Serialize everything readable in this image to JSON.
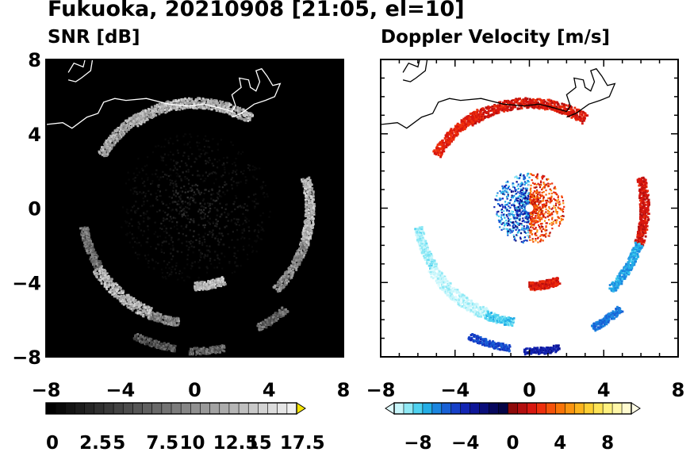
{
  "title": "Fukuoka, 20210908 [21:05, el=10]",
  "chart_data": [
    {
      "type": "heatmap",
      "title": "SNR [dB]",
      "xlim": [
        -8,
        8
      ],
      "ylim": [
        -8,
        8
      ],
      "x_ticks": [
        "−8",
        "−4",
        "0",
        "4",
        "8"
      ],
      "y_ticks": [
        "8",
        "4",
        "0",
        "−4",
        "−8"
      ],
      "background": "#000000",
      "colorbar": {
        "labels": [
          "0",
          "2.5",
          "5",
          "7.5",
          "10",
          "12.5",
          "15",
          "17.5"
        ],
        "range": [
          0,
          18.75
        ],
        "extend": "max",
        "colors": [
          "#000000",
          "#090909",
          "#131313",
          "#1c1c1c",
          "#262626",
          "#303030",
          "#393939",
          "#434343",
          "#4c4c4c",
          "#565656",
          "#606060",
          "#696969",
          "#737373",
          "#7c7c7c",
          "#868686",
          "#909090",
          "#999999",
          "#a3a3a3",
          "#acacac",
          "#b6b6b6",
          "#c0c0c0",
          "#c9c9c9",
          "#d3d3d3",
          "#dcdcdc",
          "#e6e6e6",
          "#f0f0f0"
        ],
        "extend_color": "#f5e400"
      },
      "features": [
        {
          "name": "echo ring",
          "center": [
            0,
            0
          ],
          "radius": 6.0,
          "value_range": [
            8,
            19
          ]
        },
        {
          "name": "outer arcs",
          "center": [
            0,
            0
          ],
          "radius": 7.4,
          "value_range": [
            6,
            14
          ]
        },
        {
          "name": "near-radar clutter",
          "center": [
            0,
            0
          ],
          "radius": 3.8,
          "value_range": [
            1,
            5
          ]
        }
      ]
    },
    {
      "type": "heatmap",
      "title": "Doppler Velocity [m/s]",
      "xlim": [
        -8,
        8
      ],
      "ylim": [
        -8,
        8
      ],
      "x_ticks": [
        "−8",
        "−4",
        "0",
        "4",
        "8"
      ],
      "y_ticks": [
        "8",
        "4",
        "0",
        "−4",
        "−8"
      ],
      "background": "#ffffff",
      "colorbar": {
        "labels": [
          "−8",
          "−4",
          "0",
          "4",
          "8"
        ],
        "range": [
          -10,
          10
        ],
        "extend": "both",
        "colors": [
          "#c8f6fb",
          "#8fe9f5",
          "#4ed2f0",
          "#24aee6",
          "#1b86e0",
          "#1860d6",
          "#1640c8",
          "#1326b4",
          "#0e1698",
          "#0a0e7a",
          "#07085e",
          "#050546",
          "#8e0a0a",
          "#b30e0e",
          "#d8170f",
          "#ee2f0c",
          "#f5520a",
          "#f97408",
          "#fb9510",
          "#fcb41d",
          "#fdcf34",
          "#fee356",
          "#fff17f",
          "#fff7a8",
          "#fffbd0"
        ],
        "extend_low": "#e0fbfd",
        "extend_high": "#fffde6"
      },
      "features": [
        {
          "name": "north arc",
          "velocity": 1.5
        },
        {
          "name": "southwest arc",
          "velocity": -9
        },
        {
          "name": "east arc",
          "velocity": 1.5
        },
        {
          "name": "southeast arc",
          "velocity": -6
        },
        {
          "name": "radar center toward",
          "velocity": -7
        },
        {
          "name": "radar center away",
          "velocity": 3
        }
      ]
    }
  ]
}
